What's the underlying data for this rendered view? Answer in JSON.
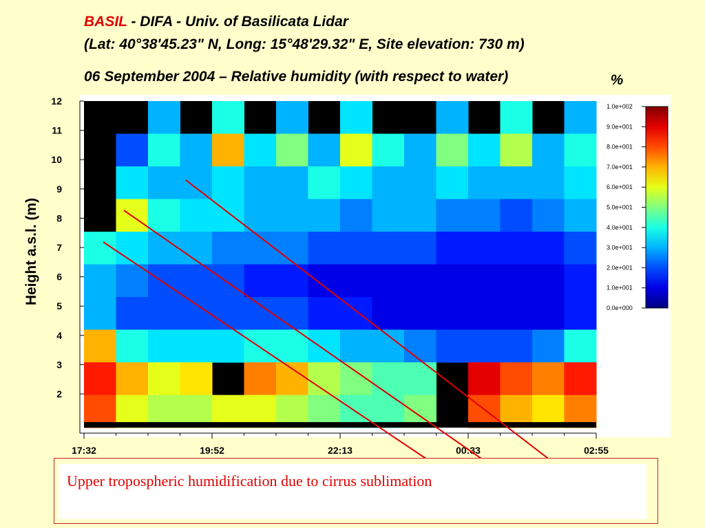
{
  "title": {
    "prefix": "BASIL",
    "rest": "- DIFA - Univ. of Basilicata Lidar",
    "line2": "(Lat: 40°38'45.23\" N, Long: 15°48'29.32\" E, Site elevation: 730 m)",
    "line3": "06 September 2004 – Relative humidity (with respect to water)"
  },
  "chart_data": {
    "type": "heatmap",
    "y_label": "Height a.s.l. (m)",
    "ylim": [
      0.85,
      12
    ],
    "yticks": [
      2,
      3,
      4,
      5,
      6,
      7,
      8,
      9,
      10,
      11,
      12
    ],
    "xticks": [
      "17:32",
      "19:52",
      "22:13",
      "00:33",
      "02:55"
    ],
    "zlim": [
      0,
      100
    ],
    "z": [
      [
        null,
        null,
        30,
        null,
        40,
        null,
        30,
        null,
        35,
        null,
        null,
        30,
        null,
        40,
        null,
        30
      ],
      [
        null,
        20,
        40,
        30,
        70,
        35,
        50,
        30,
        60,
        40,
        30,
        50,
        35,
        55,
        30,
        40
      ],
      [
        null,
        35,
        30,
        30,
        35,
        30,
        30,
        40,
        35,
        30,
        30,
        35,
        30,
        30,
        30,
        35
      ],
      [
        null,
        60,
        40,
        35,
        35,
        30,
        30,
        30,
        25,
        30,
        30,
        25,
        25,
        20,
        25,
        30
      ],
      [
        40,
        35,
        30,
        30,
        25,
        25,
        25,
        20,
        20,
        20,
        20,
        15,
        15,
        15,
        15,
        20
      ],
      [
        30,
        25,
        20,
        20,
        20,
        15,
        15,
        10,
        10,
        10,
        10,
        10,
        10,
        10,
        10,
        15
      ],
      [
        30,
        20,
        20,
        20,
        20,
        20,
        20,
        15,
        15,
        10,
        10,
        10,
        10,
        10,
        10,
        15
      ],
      [
        70,
        40,
        35,
        35,
        35,
        40,
        40,
        35,
        30,
        30,
        25,
        20,
        20,
        20,
        25,
        40
      ],
      [
        85,
        70,
        60,
        65,
        null,
        75,
        70,
        55,
        50,
        45,
        45,
        null,
        90,
        80,
        75,
        85
      ],
      [
        80,
        60,
        55,
        55,
        60,
        60,
        55,
        50,
        45,
        45,
        50,
        null,
        80,
        70,
        65,
        75
      ]
    ],
    "colorbar_ticks": [
      {
        "value": 100,
        "label": "1.0e+002"
      },
      {
        "value": 90,
        "label": "9.0e+001"
      },
      {
        "value": 80,
        "label": "8.0e+001"
      },
      {
        "value": 70,
        "label": "7.0e+001"
      },
      {
        "value": 60,
        "label": "6.0e+001"
      },
      {
        "value": 50,
        "label": "5.0e+001"
      },
      {
        "value": 40,
        "label": "4.0e+001"
      },
      {
        "value": 30,
        "label": "3.0e+001"
      },
      {
        "value": 20,
        "label": "2.0e+001"
      },
      {
        "value": 10,
        "label": "1.0e+001"
      },
      {
        "value": 0,
        "label": "0.0e+000"
      }
    ],
    "colorbar_unit": "%"
  },
  "annotation": "Upper tropospheric humidification due to cirrus sublimation"
}
